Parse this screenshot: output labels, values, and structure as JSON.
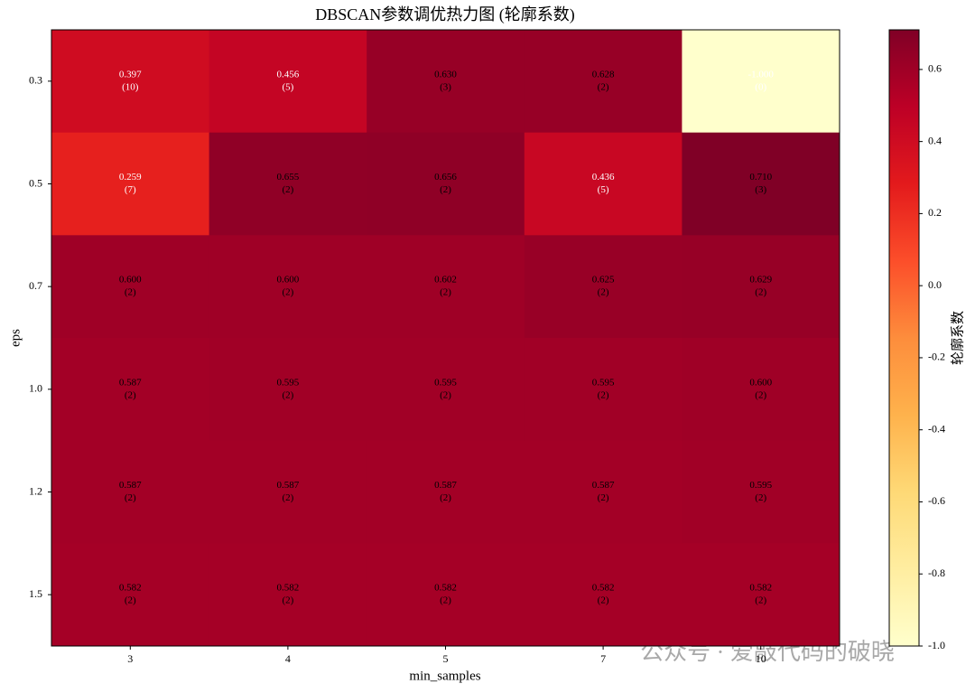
{
  "chart_data": {
    "type": "heatmap",
    "title": "DBSCAN参数调优热力图 (轮廓系数)",
    "x_label": "min_samples",
    "y_label": "eps",
    "x_categories": [
      "3",
      "4",
      "5",
      "7",
      "10"
    ],
    "y_categories": [
      "0.3",
      "0.5",
      "0.7",
      "1.0",
      "1.2",
      "1.5"
    ],
    "values": [
      [
        0.397,
        0.456,
        0.63,
        0.628,
        -1.0
      ],
      [
        0.259,
        0.655,
        0.656,
        0.436,
        0.71
      ],
      [
        0.6,
        0.6,
        0.602,
        0.625,
        0.629
      ],
      [
        0.587,
        0.595,
        0.595,
        0.595,
        0.6
      ],
      [
        0.587,
        0.587,
        0.587,
        0.587,
        0.595
      ],
      [
        0.582,
        0.582,
        0.582,
        0.582,
        0.582
      ]
    ],
    "value_labels": [
      [
        "0.397",
        "0.456",
        "0.630",
        "0.628",
        "-1.000"
      ],
      [
        "0.259",
        "0.655",
        "0.656",
        "0.436",
        "0.710"
      ],
      [
        "0.600",
        "0.600",
        "0.602",
        "0.625",
        "0.629"
      ],
      [
        "0.587",
        "0.595",
        "0.595",
        "0.595",
        "0.600"
      ],
      [
        "0.587",
        "0.587",
        "0.587",
        "0.587",
        "0.595"
      ],
      [
        "0.582",
        "0.582",
        "0.582",
        "0.582",
        "0.582"
      ]
    ],
    "counts": [
      [
        10,
        5,
        3,
        2,
        0
      ],
      [
        7,
        2,
        2,
        5,
        3
      ],
      [
        2,
        2,
        2,
        2,
        2
      ],
      [
        2,
        2,
        2,
        2,
        2
      ],
      [
        2,
        2,
        2,
        2,
        2
      ],
      [
        2,
        2,
        2,
        2,
        2
      ]
    ],
    "count_labels": [
      [
        "(10)",
        "(5)",
        "(3)",
        "(2)",
        "(0)"
      ],
      [
        "(7)",
        "(2)",
        "(2)",
        "(5)",
        "(3)"
      ],
      [
        "(2)",
        "(2)",
        "(2)",
        "(2)",
        "(2)"
      ],
      [
        "(2)",
        "(2)",
        "(2)",
        "(2)",
        "(2)"
      ],
      [
        "(2)",
        "(2)",
        "(2)",
        "(2)",
        "(2)"
      ],
      [
        "(2)",
        "(2)",
        "(2)",
        "(2)",
        "(2)"
      ]
    ],
    "colormap": [
      "#ffffcc",
      "#ffeda0",
      "#fed976",
      "#feb24c",
      "#fd8d3c",
      "#fc4e2a",
      "#e31a1c",
      "#bd0026",
      "#800026"
    ],
    "clim": [
      -1.0,
      0.71
    ],
    "colorbar_label": "轮廓系数",
    "colorbar_ticks": [
      {
        "value": -1.0,
        "label": "-1.0"
      },
      {
        "value": -0.8,
        "label": "-0.8"
      },
      {
        "value": -0.6,
        "label": "-0.6"
      },
      {
        "value": -0.4,
        "label": "-0.4"
      },
      {
        "value": -0.2,
        "label": "-0.2"
      },
      {
        "value": 0.0,
        "label": "0.0"
      },
      {
        "value": 0.2,
        "label": "0.2"
      },
      {
        "value": 0.4,
        "label": "0.4"
      },
      {
        "value": 0.6,
        "label": "0.6"
      }
    ],
    "watermark": "公众号 · 爱敲代码的破晓"
  }
}
